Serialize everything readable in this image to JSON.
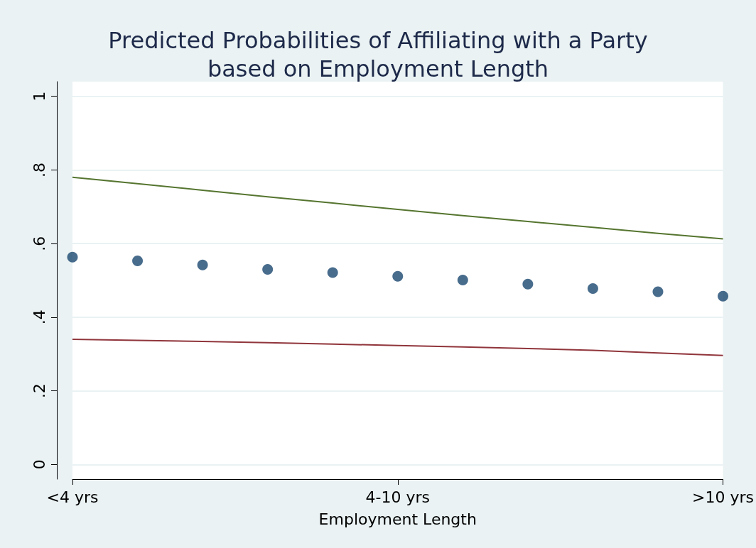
{
  "chart_data": {
    "type": "scatter",
    "title": "Predicted Probabilities of Affiliating with a Party\nbased on Employment Length",
    "xlabel": "Employment Length",
    "categories": [
      "<4 yrs",
      null,
      null,
      null,
      null,
      "4-10 yrs",
      null,
      null,
      null,
      null,
      ">10 yrs"
    ],
    "ylim": [
      -0.04,
      1.04
    ],
    "yticks": [
      0,
      {
        "value": 0.2,
        "label": ".2"
      },
      {
        "value": 0.4,
        "label": ".4"
      },
      {
        "value": 0.6,
        "label": ".6"
      },
      {
        "value": 0.8,
        "label": ".8"
      },
      1
    ],
    "grid": "y",
    "series": [
      {
        "marker": "circle",
        "color": "#1a476f",
        "values": [
          0.563,
          0.553,
          0.542,
          0.53,
          0.521,
          0.511,
          0.501,
          0.49,
          0.478,
          0.469,
          0.457
        ]
      },
      {
        "type": "line",
        "marker": "none",
        "color": "#55752f",
        "values": [
          0.78,
          0.763,
          0.745,
          0.727,
          0.71,
          0.693,
          0.676,
          0.66,
          0.644,
          0.628,
          0.613
        ]
      },
      {
        "type": "line",
        "marker": "none",
        "color": "#90353b",
        "values": [
          0.34,
          0.337,
          0.334,
          0.331,
          0.327,
          0.323,
          0.319,
          0.315,
          0.31,
          0.303,
          0.296
        ]
      }
    ]
  }
}
